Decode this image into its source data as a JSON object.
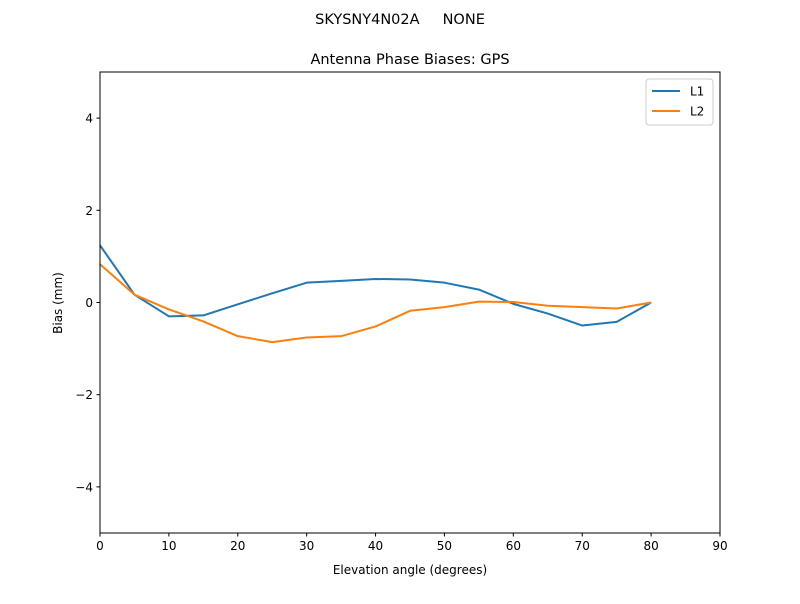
{
  "figure": {
    "suptitle": "SKYSNY4N02A     NONE"
  },
  "chart_data": {
    "type": "line",
    "title": "Antenna Phase Biases: GPS",
    "xlabel": "Elevation angle (degrees)",
    "ylabel": "Bias (mm)",
    "xlim": [
      0,
      90
    ],
    "ylim": [
      -5,
      5
    ],
    "xticks": [
      0,
      10,
      20,
      30,
      40,
      50,
      60,
      70,
      80,
      90
    ],
    "yticks": [
      -4,
      -2,
      0,
      2,
      4
    ],
    "ytick_labels": [
      "−4",
      "−2",
      "0",
      "2",
      "4"
    ],
    "grid": false,
    "legend_position": "top-right",
    "x": [
      0,
      5,
      10,
      15,
      20,
      25,
      30,
      35,
      40,
      45,
      50,
      55,
      60,
      65,
      70,
      75,
      80
    ],
    "series": [
      {
        "name": "L1",
        "color": "#1f77b4",
        "values": [
          1.24,
          0.17,
          -0.3,
          -0.28,
          -0.04,
          0.2,
          0.43,
          0.47,
          0.51,
          0.5,
          0.43,
          0.28,
          -0.03,
          -0.24,
          -0.5,
          -0.42,
          0.0
        ]
      },
      {
        "name": "L2",
        "color": "#ff7f0e",
        "values": [
          0.83,
          0.17,
          -0.15,
          -0.41,
          -0.73,
          -0.86,
          -0.76,
          -0.73,
          -0.52,
          -0.18,
          -0.1,
          0.02,
          0.01,
          -0.07,
          -0.1,
          -0.13,
          0.0
        ]
      }
    ]
  }
}
